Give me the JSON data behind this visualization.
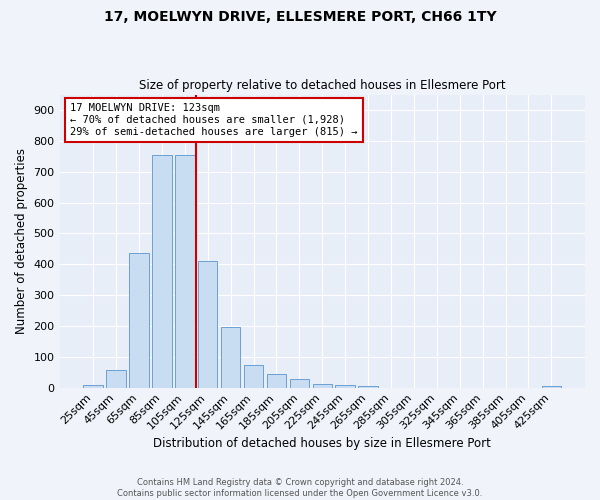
{
  "title": "17, MOELWYN DRIVE, ELLESMERE PORT, CH66 1TY",
  "subtitle": "Size of property relative to detached houses in Ellesmere Port",
  "xlabel": "Distribution of detached houses by size in Ellesmere Port",
  "ylabel": "Number of detached properties",
  "bar_labels": [
    "25sqm",
    "45sqm",
    "65sqm",
    "85sqm",
    "105sqm",
    "125sqm",
    "145sqm",
    "165sqm",
    "185sqm",
    "205sqm",
    "225sqm",
    "245sqm",
    "265sqm",
    "285sqm",
    "305sqm",
    "325sqm",
    "345sqm",
    "365sqm",
    "385sqm",
    "405sqm",
    "425sqm"
  ],
  "bar_values": [
    10,
    58,
    438,
    753,
    753,
    410,
    198,
    75,
    43,
    27,
    13,
    8,
    4,
    0,
    0,
    0,
    0,
    0,
    0,
    0,
    5
  ],
  "bar_color": "#c9ddf2",
  "bar_edge_color": "#6b9fd4",
  "vline_color": "#cc0000",
  "annotation_title": "17 MOELWYN DRIVE: 123sqm",
  "annotation_line1": "← 70% of detached houses are smaller (1,928)",
  "annotation_line2": "29% of semi-detached houses are larger (815) →",
  "annotation_box_color": "#ffffff",
  "annotation_box_edge_color": "#cc0000",
  "ylim": [
    0,
    950
  ],
  "yticks": [
    0,
    100,
    200,
    300,
    400,
    500,
    600,
    700,
    800,
    900
  ],
  "footer_line1": "Contains HM Land Registry data © Crown copyright and database right 2024.",
  "footer_line2": "Contains public sector information licensed under the Open Government Licence v3.0.",
  "bg_color": "#f0f4fa",
  "plot_bg_color": "#e8eef8"
}
